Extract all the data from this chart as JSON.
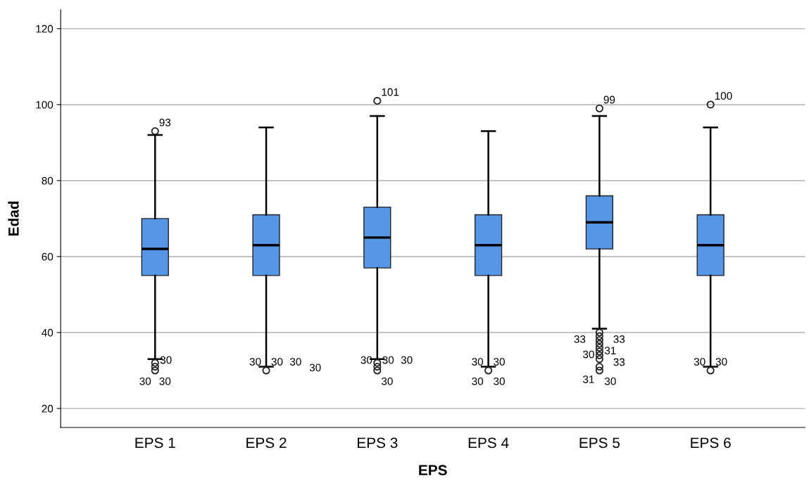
{
  "chart_data": {
    "type": "box",
    "xlabel": "EPS",
    "ylabel": "Edad",
    "categories": [
      "EPS 1",
      "EPS 2",
      "EPS 3",
      "EPS 4",
      "EPS 5",
      "EPS 6"
    ],
    "color": "#5596e6",
    "ylim": [
      15,
      125
    ],
    "yticks": [
      20,
      40,
      60,
      80,
      100,
      120
    ],
    "grid": "y",
    "boxes": [
      {
        "low": 33,
        "q1": 55,
        "median": 62,
        "q3": 70,
        "high": 92,
        "outliers": [
          93,
          32,
          31,
          30
        ]
      },
      {
        "low": 31,
        "q1": 55,
        "median": 63,
        "q3": 71,
        "high": 94,
        "outliers": [
          30
        ]
      },
      {
        "low": 33,
        "q1": 57,
        "median": 65,
        "q3": 73,
        "high": 97,
        "outliers": [
          101,
          32,
          31,
          30
        ]
      },
      {
        "low": 31,
        "q1": 55,
        "median": 63,
        "q3": 71,
        "high": 93,
        "outliers": [
          30
        ]
      },
      {
        "low": 41,
        "q1": 62,
        "median": 69,
        "q3": 76,
        "high": 97,
        "outliers": [
          99,
          40,
          39,
          38,
          37,
          36,
          35,
          34,
          33,
          31,
          30
        ]
      },
      {
        "low": 31,
        "q1": 55,
        "median": 63,
        "q3": 71,
        "high": 94,
        "outliers": [
          100,
          30
        ]
      }
    ],
    "annotations": [
      "93",
      "30",
      "30",
      "30",
      "30",
      "30",
      "30",
      "30",
      "101",
      "30",
      "30",
      "30",
      "30",
      "30",
      "30",
      "30",
      "30",
      "99",
      "33",
      "33",
      "30",
      "31",
      "33",
      "31",
      "30",
      "100",
      "30",
      "30"
    ]
  }
}
